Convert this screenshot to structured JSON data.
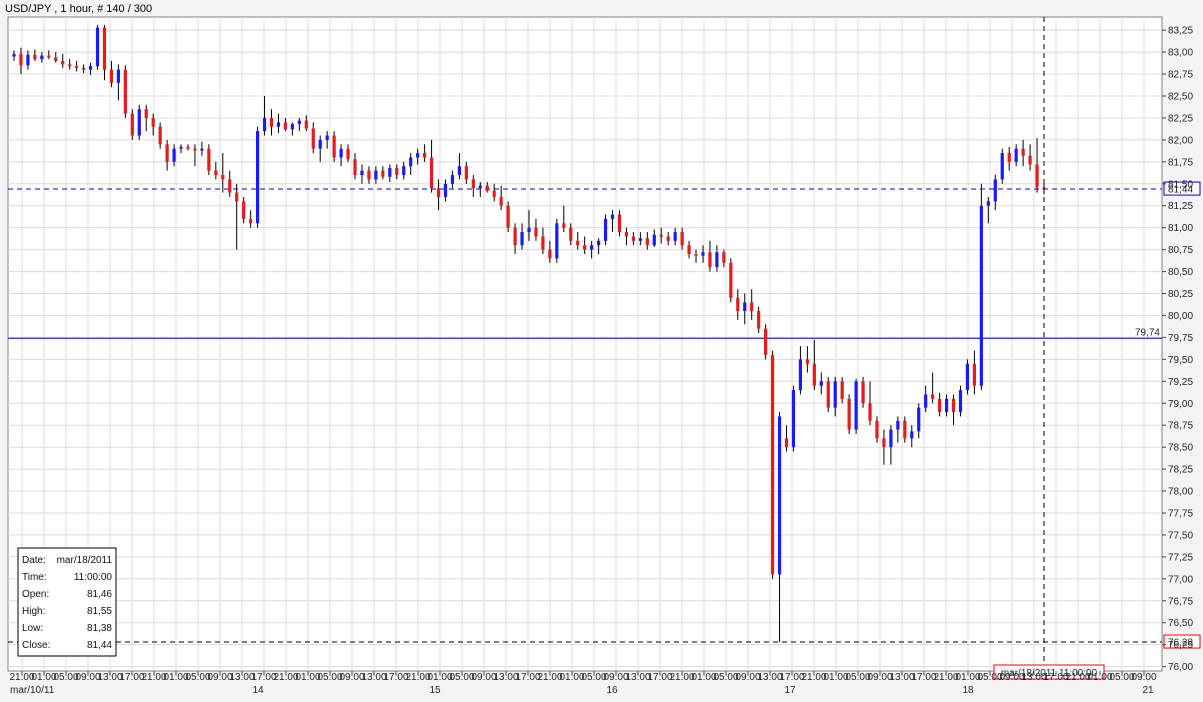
{
  "chart_data": {
    "type": "candlestick",
    "title": "USD/JPY , 1 hour, # 140 / 300",
    "colors": {
      "up": "#1a1aff",
      "down": "#e51c1c",
      "wick": "#000000",
      "grid": "#dcdcdc",
      "hline": "#0000cc",
      "crosshair": "#000000",
      "highlight": "#ff0000"
    },
    "ylim": [
      75.95,
      83.4
    ],
    "yticks": [
      "83,25",
      "83,00",
      "82,75",
      "82,50",
      "82,25",
      "82,00",
      "81,75",
      "81,50",
      "81,25",
      "81,00",
      "80,75",
      "80,50",
      "80,25",
      "80,00",
      "79,75",
      "79,50",
      "79,25",
      "79,00",
      "78,75",
      "78,50",
      "78,25",
      "78,00",
      "77,75",
      "77,50",
      "77,25",
      "77,00",
      "76,75",
      "76,50",
      "76,25",
      "76,00"
    ],
    "xtick_labels": [
      "21:00",
      "01:00",
      "05:00",
      "09:00",
      "13:00",
      "17:00",
      "21:00",
      "01:00",
      "05:00",
      "09:00",
      "13:00",
      "17:00",
      "21:00",
      "01:00",
      "05:00",
      "09:00",
      "13:00",
      "17:00",
      "21:00",
      "01:00",
      "05:00",
      "09:00",
      "13:00",
      "17:00",
      "21:00",
      "01:00",
      "05:00",
      "09:00",
      "13:00",
      "17:00",
      "21:00",
      "01:00",
      "05:00",
      "09:00",
      "13:00",
      "17:00",
      "21:00",
      "01:00",
      "05:00",
      "09:00",
      "13:00",
      "17:00",
      "21:00",
      "01:00",
      "05:00",
      "09:00",
      "13:00",
      "17:00",
      "21:00",
      "01:00",
      "05:00",
      "09:00",
      "13:00",
      "17:00",
      "21:00",
      "01:00"
    ],
    "date_labels": [
      "mar/10/11",
      "14",
      "15",
      "16",
      "17",
      "18",
      "21"
    ],
    "hlines": [
      {
        "value": 79.74,
        "label": "79,74",
        "style": "solid"
      },
      {
        "value": 81.44,
        "label": "81,44",
        "style": "dashed"
      },
      {
        "value": 76.28,
        "label": "76,28",
        "style": "dashed"
      }
    ],
    "cursor_label": "mar/18/2011 11:00:00",
    "info": [
      {
        "label": "Date:",
        "value": "mar/18/2011"
      },
      {
        "label": "Time:",
        "value": "11:00:00"
      },
      {
        "label": "Open:",
        "value": "81,46"
      },
      {
        "label": "High:",
        "value": "81,55"
      },
      {
        "label": "Low:",
        "value": "81,38"
      },
      {
        "label": "Close:",
        "value": "81,44"
      }
    ],
    "candles": [
      {
        "o": 82.95,
        "h": 83.02,
        "l": 82.9,
        "c": 82.98
      },
      {
        "o": 82.98,
        "h": 83.05,
        "l": 82.75,
        "c": 82.85
      },
      {
        "o": 82.85,
        "h": 83.02,
        "l": 82.8,
        "c": 82.97
      },
      {
        "o": 82.97,
        "h": 83.03,
        "l": 82.9,
        "c": 82.92
      },
      {
        "o": 82.92,
        "h": 83.0,
        "l": 82.88,
        "c": 82.96
      },
      {
        "o": 82.96,
        "h": 83.02,
        "l": 82.92,
        "c": 82.94
      },
      {
        "o": 82.94,
        "h": 83.0,
        "l": 82.88,
        "c": 82.9
      },
      {
        "o": 82.9,
        "h": 82.98,
        "l": 82.82,
        "c": 82.86
      },
      {
        "o": 82.86,
        "h": 82.92,
        "l": 82.8,
        "c": 82.84
      },
      {
        "o": 82.84,
        "h": 82.9,
        "l": 82.78,
        "c": 82.82
      },
      {
        "o": 82.82,
        "h": 82.86,
        "l": 82.76,
        "c": 82.8
      },
      {
        "o": 82.8,
        "h": 82.88,
        "l": 82.74,
        "c": 82.84
      },
      {
        "o": 82.84,
        "h": 83.31,
        "l": 82.8,
        "c": 83.28
      },
      {
        "o": 83.28,
        "h": 83.31,
        "l": 82.68,
        "c": 82.8
      },
      {
        "o": 82.8,
        "h": 82.9,
        "l": 82.6,
        "c": 82.65
      },
      {
        "o": 82.65,
        "h": 82.86,
        "l": 82.45,
        "c": 82.8
      },
      {
        "o": 82.8,
        "h": 82.85,
        "l": 82.25,
        "c": 82.3
      },
      {
        "o": 82.3,
        "h": 82.35,
        "l": 82.0,
        "c": 82.05
      },
      {
        "o": 82.05,
        "h": 82.4,
        "l": 82.0,
        "c": 82.35
      },
      {
        "o": 82.35,
        "h": 82.4,
        "l": 82.1,
        "c": 82.25
      },
      {
        "o": 82.25,
        "h": 82.3,
        "l": 82.05,
        "c": 82.15
      },
      {
        "o": 82.15,
        "h": 82.2,
        "l": 81.9,
        "c": 81.95
      },
      {
        "o": 81.95,
        "h": 82.0,
        "l": 81.65,
        "c": 81.75
      },
      {
        "o": 81.75,
        "h": 81.95,
        "l": 81.7,
        "c": 81.9
      },
      {
        "o": 81.9,
        "h": 81.95,
        "l": 81.85,
        "c": 81.92
      },
      {
        "o": 81.92,
        "h": 81.95,
        "l": 81.88,
        "c": 81.9
      },
      {
        "o": 81.9,
        "h": 81.95,
        "l": 81.7,
        "c": 81.88
      },
      {
        "o": 81.88,
        "h": 81.98,
        "l": 81.82,
        "c": 81.9
      },
      {
        "o": 81.9,
        "h": 81.95,
        "l": 81.6,
        "c": 81.65
      },
      {
        "o": 81.65,
        "h": 81.75,
        "l": 81.55,
        "c": 81.6
      },
      {
        "o": 81.6,
        "h": 81.85,
        "l": 81.4,
        "c": 81.55
      },
      {
        "o": 81.55,
        "h": 81.65,
        "l": 81.35,
        "c": 81.4
      },
      {
        "o": 81.4,
        "h": 81.5,
        "l": 80.75,
        "c": 81.3
      },
      {
        "o": 81.3,
        "h": 81.35,
        "l": 81.05,
        "c": 81.1
      },
      {
        "o": 81.1,
        "h": 81.2,
        "l": 81.0,
        "c": 81.05
      },
      {
        "o": 81.05,
        "h": 82.15,
        "l": 81.0,
        "c": 82.1
      },
      {
        "o": 82.1,
        "h": 82.5,
        "l": 82.05,
        "c": 82.25
      },
      {
        "o": 82.25,
        "h": 82.35,
        "l": 82.05,
        "c": 82.15
      },
      {
        "o": 82.15,
        "h": 82.3,
        "l": 82.08,
        "c": 82.2
      },
      {
        "o": 82.2,
        "h": 82.25,
        "l": 82.1,
        "c": 82.12
      },
      {
        "o": 82.12,
        "h": 82.2,
        "l": 82.05,
        "c": 82.18
      },
      {
        "o": 82.18,
        "h": 82.25,
        "l": 82.1,
        "c": 82.22
      },
      {
        "o": 82.22,
        "h": 82.28,
        "l": 82.1,
        "c": 82.13
      },
      {
        "o": 82.13,
        "h": 82.2,
        "l": 81.85,
        "c": 81.9
      },
      {
        "o": 81.9,
        "h": 82.05,
        "l": 81.75,
        "c": 82.0
      },
      {
        "o": 82.0,
        "h": 82.1,
        "l": 81.9,
        "c": 82.05
      },
      {
        "o": 82.05,
        "h": 82.1,
        "l": 81.75,
        "c": 81.8
      },
      {
        "o": 81.8,
        "h": 81.95,
        "l": 81.7,
        "c": 81.9
      },
      {
        "o": 81.9,
        "h": 81.95,
        "l": 81.75,
        "c": 81.78
      },
      {
        "o": 81.78,
        "h": 81.85,
        "l": 81.55,
        "c": 81.6
      },
      {
        "o": 81.6,
        "h": 81.72,
        "l": 81.5,
        "c": 81.65
      },
      {
        "o": 81.65,
        "h": 81.7,
        "l": 81.5,
        "c": 81.55
      },
      {
        "o": 81.55,
        "h": 81.7,
        "l": 81.5,
        "c": 81.65
      },
      {
        "o": 81.65,
        "h": 81.7,
        "l": 81.55,
        "c": 81.58
      },
      {
        "o": 81.58,
        "h": 81.72,
        "l": 81.52,
        "c": 81.68
      },
      {
        "o": 81.68,
        "h": 81.72,
        "l": 81.55,
        "c": 81.6
      },
      {
        "o": 81.6,
        "h": 81.75,
        "l": 81.55,
        "c": 81.7
      },
      {
        "o": 81.7,
        "h": 81.85,
        "l": 81.6,
        "c": 81.8
      },
      {
        "o": 81.8,
        "h": 81.9,
        "l": 81.72,
        "c": 81.85
      },
      {
        "o": 81.85,
        "h": 81.95,
        "l": 81.75,
        "c": 81.8
      },
      {
        "o": 81.8,
        "h": 82.0,
        "l": 81.4,
        "c": 81.45
      },
      {
        "o": 81.45,
        "h": 81.55,
        "l": 81.2,
        "c": 81.35
      },
      {
        "o": 81.35,
        "h": 81.55,
        "l": 81.3,
        "c": 81.5
      },
      {
        "o": 81.5,
        "h": 81.65,
        "l": 81.45,
        "c": 81.6
      },
      {
        "o": 81.6,
        "h": 81.85,
        "l": 81.55,
        "c": 81.7
      },
      {
        "o": 81.7,
        "h": 81.75,
        "l": 81.5,
        "c": 81.55
      },
      {
        "o": 81.55,
        "h": 81.6,
        "l": 81.35,
        "c": 81.45
      },
      {
        "o": 81.45,
        "h": 81.52,
        "l": 81.35,
        "c": 81.48
      },
      {
        "o": 81.48,
        "h": 81.52,
        "l": 81.4,
        "c": 81.42
      },
      {
        "o": 81.42,
        "h": 81.5,
        "l": 81.3,
        "c": 81.35
      },
      {
        "o": 81.35,
        "h": 81.48,
        "l": 81.2,
        "c": 81.25
      },
      {
        "o": 81.25,
        "h": 81.3,
        "l": 80.95,
        "c": 81.0
      },
      {
        "o": 81.0,
        "h": 81.05,
        "l": 80.7,
        "c": 80.8
      },
      {
        "o": 80.8,
        "h": 81.05,
        "l": 80.75,
        "c": 80.95
      },
      {
        "o": 80.95,
        "h": 81.2,
        "l": 80.85,
        "c": 81.0
      },
      {
        "o": 81.0,
        "h": 81.1,
        "l": 80.85,
        "c": 80.9
      },
      {
        "o": 80.9,
        "h": 81.0,
        "l": 80.7,
        "c": 80.75
      },
      {
        "o": 80.75,
        "h": 80.85,
        "l": 80.6,
        "c": 80.65
      },
      {
        "o": 80.65,
        "h": 81.1,
        "l": 80.6,
        "c": 81.05
      },
      {
        "o": 81.05,
        "h": 81.25,
        "l": 80.95,
        "c": 81.0
      },
      {
        "o": 81.0,
        "h": 81.05,
        "l": 80.8,
        "c": 80.85
      },
      {
        "o": 80.85,
        "h": 80.95,
        "l": 80.75,
        "c": 80.8
      },
      {
        "o": 80.8,
        "h": 80.9,
        "l": 80.7,
        "c": 80.75
      },
      {
        "o": 80.75,
        "h": 80.85,
        "l": 80.65,
        "c": 80.8
      },
      {
        "o": 80.8,
        "h": 80.88,
        "l": 80.7,
        "c": 80.85
      },
      {
        "o": 80.85,
        "h": 81.15,
        "l": 80.8,
        "c": 81.1
      },
      {
        "o": 81.1,
        "h": 81.2,
        "l": 80.95,
        "c": 81.15
      },
      {
        "o": 81.15,
        "h": 81.2,
        "l": 80.9,
        "c": 80.95
      },
      {
        "o": 80.95,
        "h": 81.0,
        "l": 80.8,
        "c": 80.9
      },
      {
        "o": 80.9,
        "h": 80.95,
        "l": 80.8,
        "c": 80.85
      },
      {
        "o": 80.85,
        "h": 80.95,
        "l": 80.8,
        "c": 80.88
      },
      {
        "o": 80.88,
        "h": 80.95,
        "l": 80.75,
        "c": 80.8
      },
      {
        "o": 80.8,
        "h": 80.98,
        "l": 80.78,
        "c": 80.92
      },
      {
        "o": 80.92,
        "h": 81.0,
        "l": 80.82,
        "c": 80.9
      },
      {
        "o": 80.9,
        "h": 80.95,
        "l": 80.8,
        "c": 80.85
      },
      {
        "o": 80.85,
        "h": 81.0,
        "l": 80.8,
        "c": 80.95
      },
      {
        "o": 80.95,
        "h": 81.0,
        "l": 80.75,
        "c": 80.8
      },
      {
        "o": 80.8,
        "h": 80.85,
        "l": 80.65,
        "c": 80.7
      },
      {
        "o": 80.7,
        "h": 80.75,
        "l": 80.6,
        "c": 80.68
      },
      {
        "o": 80.68,
        "h": 80.8,
        "l": 80.6,
        "c": 80.72
      },
      {
        "o": 80.72,
        "h": 80.85,
        "l": 80.5,
        "c": 80.55
      },
      {
        "o": 80.55,
        "h": 80.8,
        "l": 80.5,
        "c": 80.72
      },
      {
        "o": 80.72,
        "h": 80.75,
        "l": 80.55,
        "c": 80.6
      },
      {
        "o": 80.6,
        "h": 80.65,
        "l": 80.15,
        "c": 80.2
      },
      {
        "o": 80.2,
        "h": 80.3,
        "l": 79.95,
        "c": 80.05
      },
      {
        "o": 80.05,
        "h": 80.25,
        "l": 79.9,
        "c": 80.15
      },
      {
        "o": 80.15,
        "h": 80.3,
        "l": 79.95,
        "c": 80.05
      },
      {
        "o": 80.05,
        "h": 80.1,
        "l": 79.8,
        "c": 79.85
      },
      {
        "o": 79.85,
        "h": 79.9,
        "l": 79.5,
        "c": 79.55
      },
      {
        "o": 79.55,
        "h": 79.6,
        "l": 77.0,
        "c": 77.05
      },
      {
        "o": 77.05,
        "h": 78.9,
        "l": 76.28,
        "c": 78.85
      },
      {
        "o": 78.6,
        "h": 78.75,
        "l": 78.45,
        "c": 78.5
      },
      {
        "o": 78.5,
        "h": 79.2,
        "l": 78.45,
        "c": 79.15
      },
      {
        "o": 79.15,
        "h": 79.65,
        "l": 79.1,
        "c": 79.5
      },
      {
        "o": 79.5,
        "h": 79.65,
        "l": 79.35,
        "c": 79.45
      },
      {
        "o": 79.45,
        "h": 79.72,
        "l": 79.15,
        "c": 79.2
      },
      {
        "o": 79.2,
        "h": 79.35,
        "l": 79.1,
        "c": 79.25
      },
      {
        "o": 79.25,
        "h": 79.3,
        "l": 78.9,
        "c": 78.95
      },
      {
        "o": 78.95,
        "h": 79.3,
        "l": 78.85,
        "c": 79.25
      },
      {
        "o": 79.25,
        "h": 79.3,
        "l": 79.0,
        "c": 79.05
      },
      {
        "o": 79.05,
        "h": 79.1,
        "l": 78.65,
        "c": 78.7
      },
      {
        "o": 78.7,
        "h": 79.28,
        "l": 78.65,
        "c": 79.25
      },
      {
        "o": 79.25,
        "h": 79.3,
        "l": 78.95,
        "c": 79.0
      },
      {
        "o": 79.0,
        "h": 79.25,
        "l": 78.75,
        "c": 78.8
      },
      {
        "o": 78.8,
        "h": 78.85,
        "l": 78.55,
        "c": 78.6
      },
      {
        "o": 78.6,
        "h": 78.7,
        "l": 78.3,
        "c": 78.5
      },
      {
        "o": 78.5,
        "h": 78.75,
        "l": 78.3,
        "c": 78.7
      },
      {
        "o": 78.7,
        "h": 78.85,
        "l": 78.55,
        "c": 78.8
      },
      {
        "o": 78.8,
        "h": 78.85,
        "l": 78.55,
        "c": 78.6
      },
      {
        "o": 78.6,
        "h": 78.75,
        "l": 78.5,
        "c": 78.68
      },
      {
        "o": 78.68,
        "h": 79.0,
        "l": 78.6,
        "c": 78.95
      },
      {
        "o": 78.95,
        "h": 79.2,
        "l": 78.9,
        "c": 79.1
      },
      {
        "o": 79.1,
        "h": 79.35,
        "l": 79.0,
        "c": 79.05
      },
      {
        "o": 79.05,
        "h": 79.12,
        "l": 78.85,
        "c": 78.9
      },
      {
        "o": 78.9,
        "h": 79.1,
        "l": 78.85,
        "c": 79.05
      },
      {
        "o": 79.05,
        "h": 79.1,
        "l": 78.75,
        "c": 78.9
      },
      {
        "o": 78.9,
        "h": 79.2,
        "l": 78.85,
        "c": 79.15
      },
      {
        "o": 79.15,
        "h": 79.5,
        "l": 79.1,
        "c": 79.45
      },
      {
        "o": 79.45,
        "h": 79.6,
        "l": 79.1,
        "c": 79.2
      },
      {
        "o": 79.2,
        "h": 81.5,
        "l": 79.15,
        "c": 81.25
      },
      {
        "o": 81.25,
        "h": 81.35,
        "l": 81.05,
        "c": 81.3
      },
      {
        "o": 81.3,
        "h": 81.6,
        "l": 81.2,
        "c": 81.55
      },
      {
        "o": 81.55,
        "h": 81.9,
        "l": 81.5,
        "c": 81.85
      },
      {
        "o": 81.85,
        "h": 81.92,
        "l": 81.65,
        "c": 81.75
      },
      {
        "o": 81.75,
        "h": 81.95,
        "l": 81.7,
        "c": 81.9
      },
      {
        "o": 81.9,
        "h": 82.0,
        "l": 81.7,
        "c": 81.82
      },
      {
        "o": 81.82,
        "h": 81.95,
        "l": 81.65,
        "c": 81.72
      },
      {
        "o": 81.72,
        "h": 82.02,
        "l": 81.4,
        "c": 81.46
      },
      {
        "o": 81.46,
        "h": 81.55,
        "l": 81.38,
        "c": 81.44
      }
    ]
  }
}
